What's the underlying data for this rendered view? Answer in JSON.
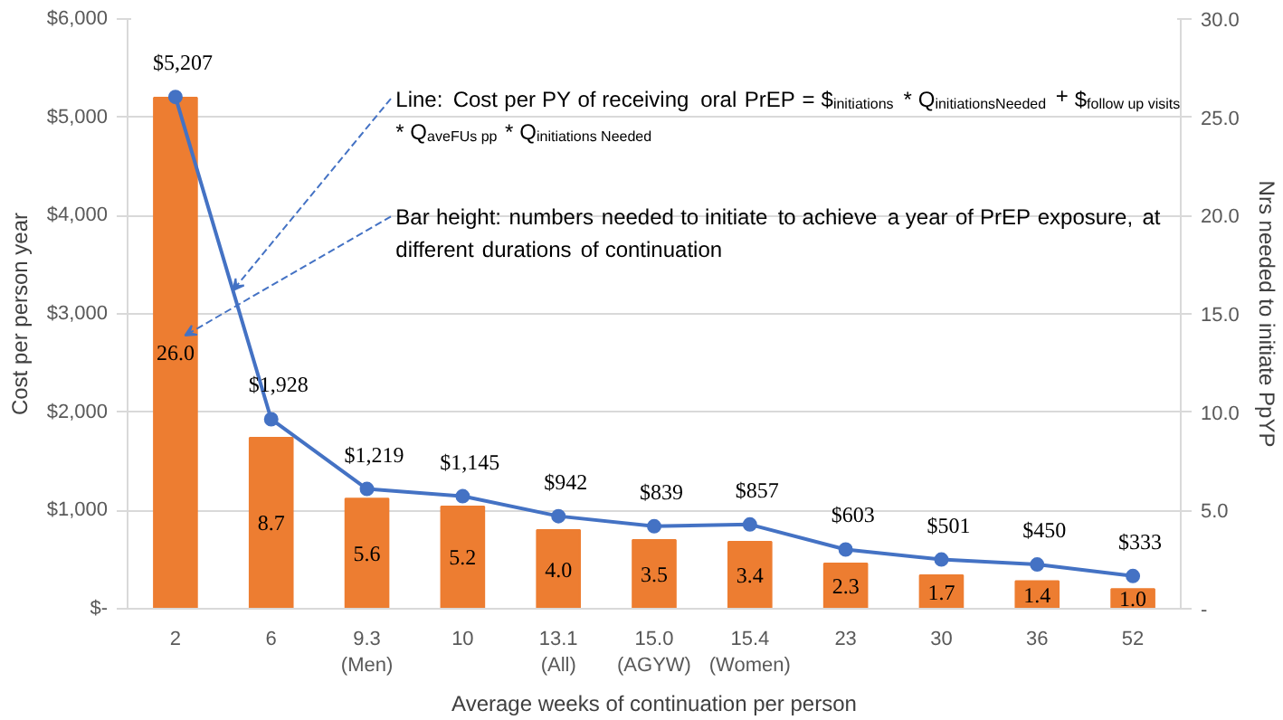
{
  "chart_data": {
    "type": "bar",
    "xlabel": "Average weeks of continuation per person",
    "ylabel": "Cost per person year",
    "y2label": "Nrs needed to initiate PpYP",
    "categories": [
      "2",
      "6",
      "9.3\n(Men)",
      "10",
      "13.1\n(All)",
      "15.0\n(AGYW)",
      "15.4\n(Women)",
      "23",
      "30",
      "36",
      "52"
    ],
    "series": [
      {
        "axis": "y2",
        "color": "#ed7d31",
        "values": [
          26.0,
          8.7,
          5.6,
          5.2,
          4.0,
          3.5,
          3.4,
          2.3,
          1.7,
          1.4,
          1.0
        ],
        "value_labels": [
          "26.0",
          "8.7",
          "5.6",
          "5.2",
          "4.0",
          "3.5",
          "3.4",
          "2.3",
          "1.7",
          "1.4",
          "1.0"
        ]
      },
      {
        "type": "line",
        "color": "#4472c4",
        "marker": "circle",
        "values": [
          5207,
          1928,
          1219,
          1145,
          942,
          839,
          857,
          603,
          501,
          450,
          333
        ],
        "value_labels": [
          "$5,207",
          "$1,928",
          "$1,219",
          "$1,145",
          "$942",
          "$839",
          "$857",
          "$603",
          "$501",
          "$450",
          "$333"
        ]
      }
    ],
    "ylim": [
      0,
      6000
    ],
    "yticks": [
      {
        "value": 0,
        "label": "$-"
      },
      {
        "value": 1000,
        "label": "$1,000"
      },
      {
        "value": 2000,
        "label": "$2,000"
      },
      {
        "value": 3000,
        "label": "$3,000"
      },
      {
        "value": 4000,
        "label": "$4,000"
      },
      {
        "value": 5000,
        "label": "$5,000"
      },
      {
        "value": 6000,
        "label": "$6,000"
      }
    ],
    "y2lim": [
      0,
      30
    ],
    "y2ticks": [
      {
        "value": 0,
        "label": "-"
      },
      {
        "value": 5,
        "label": "5.0"
      },
      {
        "value": 10,
        "label": "10.0"
      },
      {
        "value": 15,
        "label": "15.0"
      },
      {
        "value": 20,
        "label": "20.0"
      },
      {
        "value": 25,
        "label": "25.0"
      },
      {
        "value": 30,
        "label": "30.0"
      }
    ],
    "grid": "y",
    "annotations": [
      {
        "text": "Line: Cost per PY of receiving oral PrEP = $$_{initiations}$ * Q$_{initiationsNeeded}$ + $$_{follow up visits}$ * Q$_{aveFUs pp}$ * Q$_{initiations Needed}$"
      },
      {
        "text": "Bar height: numbers needed to initiate to achieve a year of PrEP exposure, at different durations of continuation"
      }
    ]
  }
}
